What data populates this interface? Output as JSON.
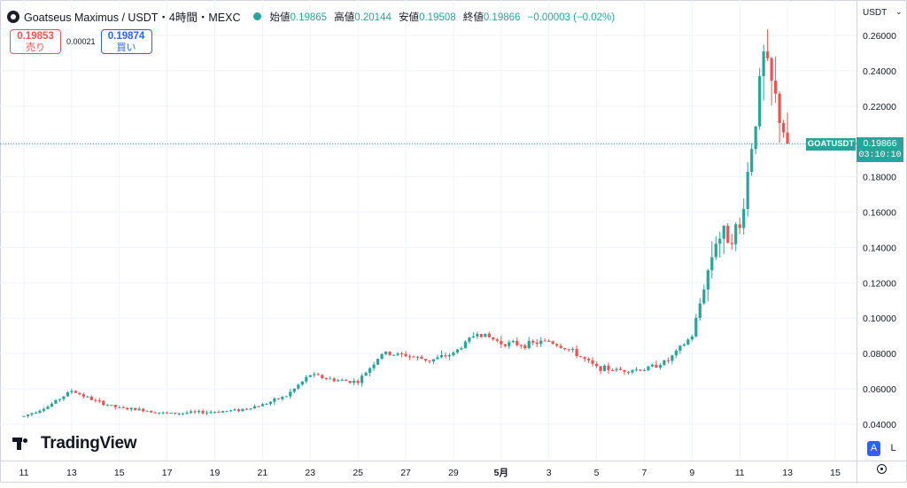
{
  "header": {
    "title": "Goatseus Maximus / USDT・4時間・MEXC",
    "open_label": "始値",
    "open": "0.19865",
    "high_label": "高値",
    "high": "0.20144",
    "low_label": "安値",
    "low": "0.19508",
    "close_label": "終値",
    "close": "0.19866",
    "change": "−0.00003 (−0.02%)"
  },
  "trade": {
    "sell_price": "0.19853",
    "sell_label": "売り",
    "spread": "0.00021",
    "buy_price": "0.19874",
    "buy_label": "買い"
  },
  "axis": {
    "currency": "USDT"
  },
  "last_price": {
    "symbol": "GOATUSDT",
    "price": "0.19866",
    "countdown": "03:10:10"
  },
  "watermark": {
    "text": "TradingView"
  },
  "scale_buttons": {
    "auto": "A",
    "log": "L"
  },
  "colors": {
    "up": "#26a69a",
    "down": "#ef5350",
    "accent": "#2962ff"
  },
  "chart_data": {
    "type": "candlestick",
    "interval": "4h",
    "ylim": [
      0.03,
      0.26
    ],
    "y_ticks": [
      "0.26000",
      "0.24000",
      "0.22000",
      "0.20000",
      "0.18000",
      "0.16000",
      "0.14000",
      "0.12000",
      "0.10000",
      "0.08000",
      "0.06000",
      "0.04000"
    ],
    "x_ticks": [
      "11",
      "13",
      "15",
      "17",
      "19",
      "21",
      "23",
      "25",
      "27",
      "29",
      "5月",
      "3",
      "5",
      "7",
      "9",
      "11",
      "13",
      "15"
    ],
    "daily_path": [
      [
        "11",
        0.0445
      ],
      [
        "12",
        0.05
      ],
      [
        "13",
        0.059
      ],
      [
        "14",
        0.053
      ],
      [
        "15",
        0.049
      ],
      [
        "16",
        0.048
      ],
      [
        "17",
        0.046
      ],
      [
        "18",
        0.0465
      ],
      [
        "19",
        0.047
      ],
      [
        "20",
        0.048
      ],
      [
        "21",
        0.051
      ],
      [
        "22",
        0.056
      ],
      [
        "23",
        0.068
      ],
      [
        "24",
        0.065
      ],
      [
        "25",
        0.064
      ],
      [
        "26",
        0.08
      ],
      [
        "27",
        0.079
      ],
      [
        "28",
        0.076
      ],
      [
        "29",
        0.08
      ],
      [
        "30",
        0.092
      ],
      [
        "5月",
        0.086
      ],
      [
        "2",
        0.085
      ],
      [
        "3",
        0.087
      ],
      [
        "4",
        0.081
      ],
      [
        "5",
        0.072
      ],
      [
        "6",
        0.0705
      ],
      [
        "7",
        0.071
      ],
      [
        "8",
        0.076
      ],
      [
        "9",
        0.09
      ],
      [
        "10",
        0.145
      ],
      [
        "11",
        0.15
      ],
      [
        "12",
        0.247
      ],
      [
        "13",
        0.1987
      ]
    ]
  }
}
